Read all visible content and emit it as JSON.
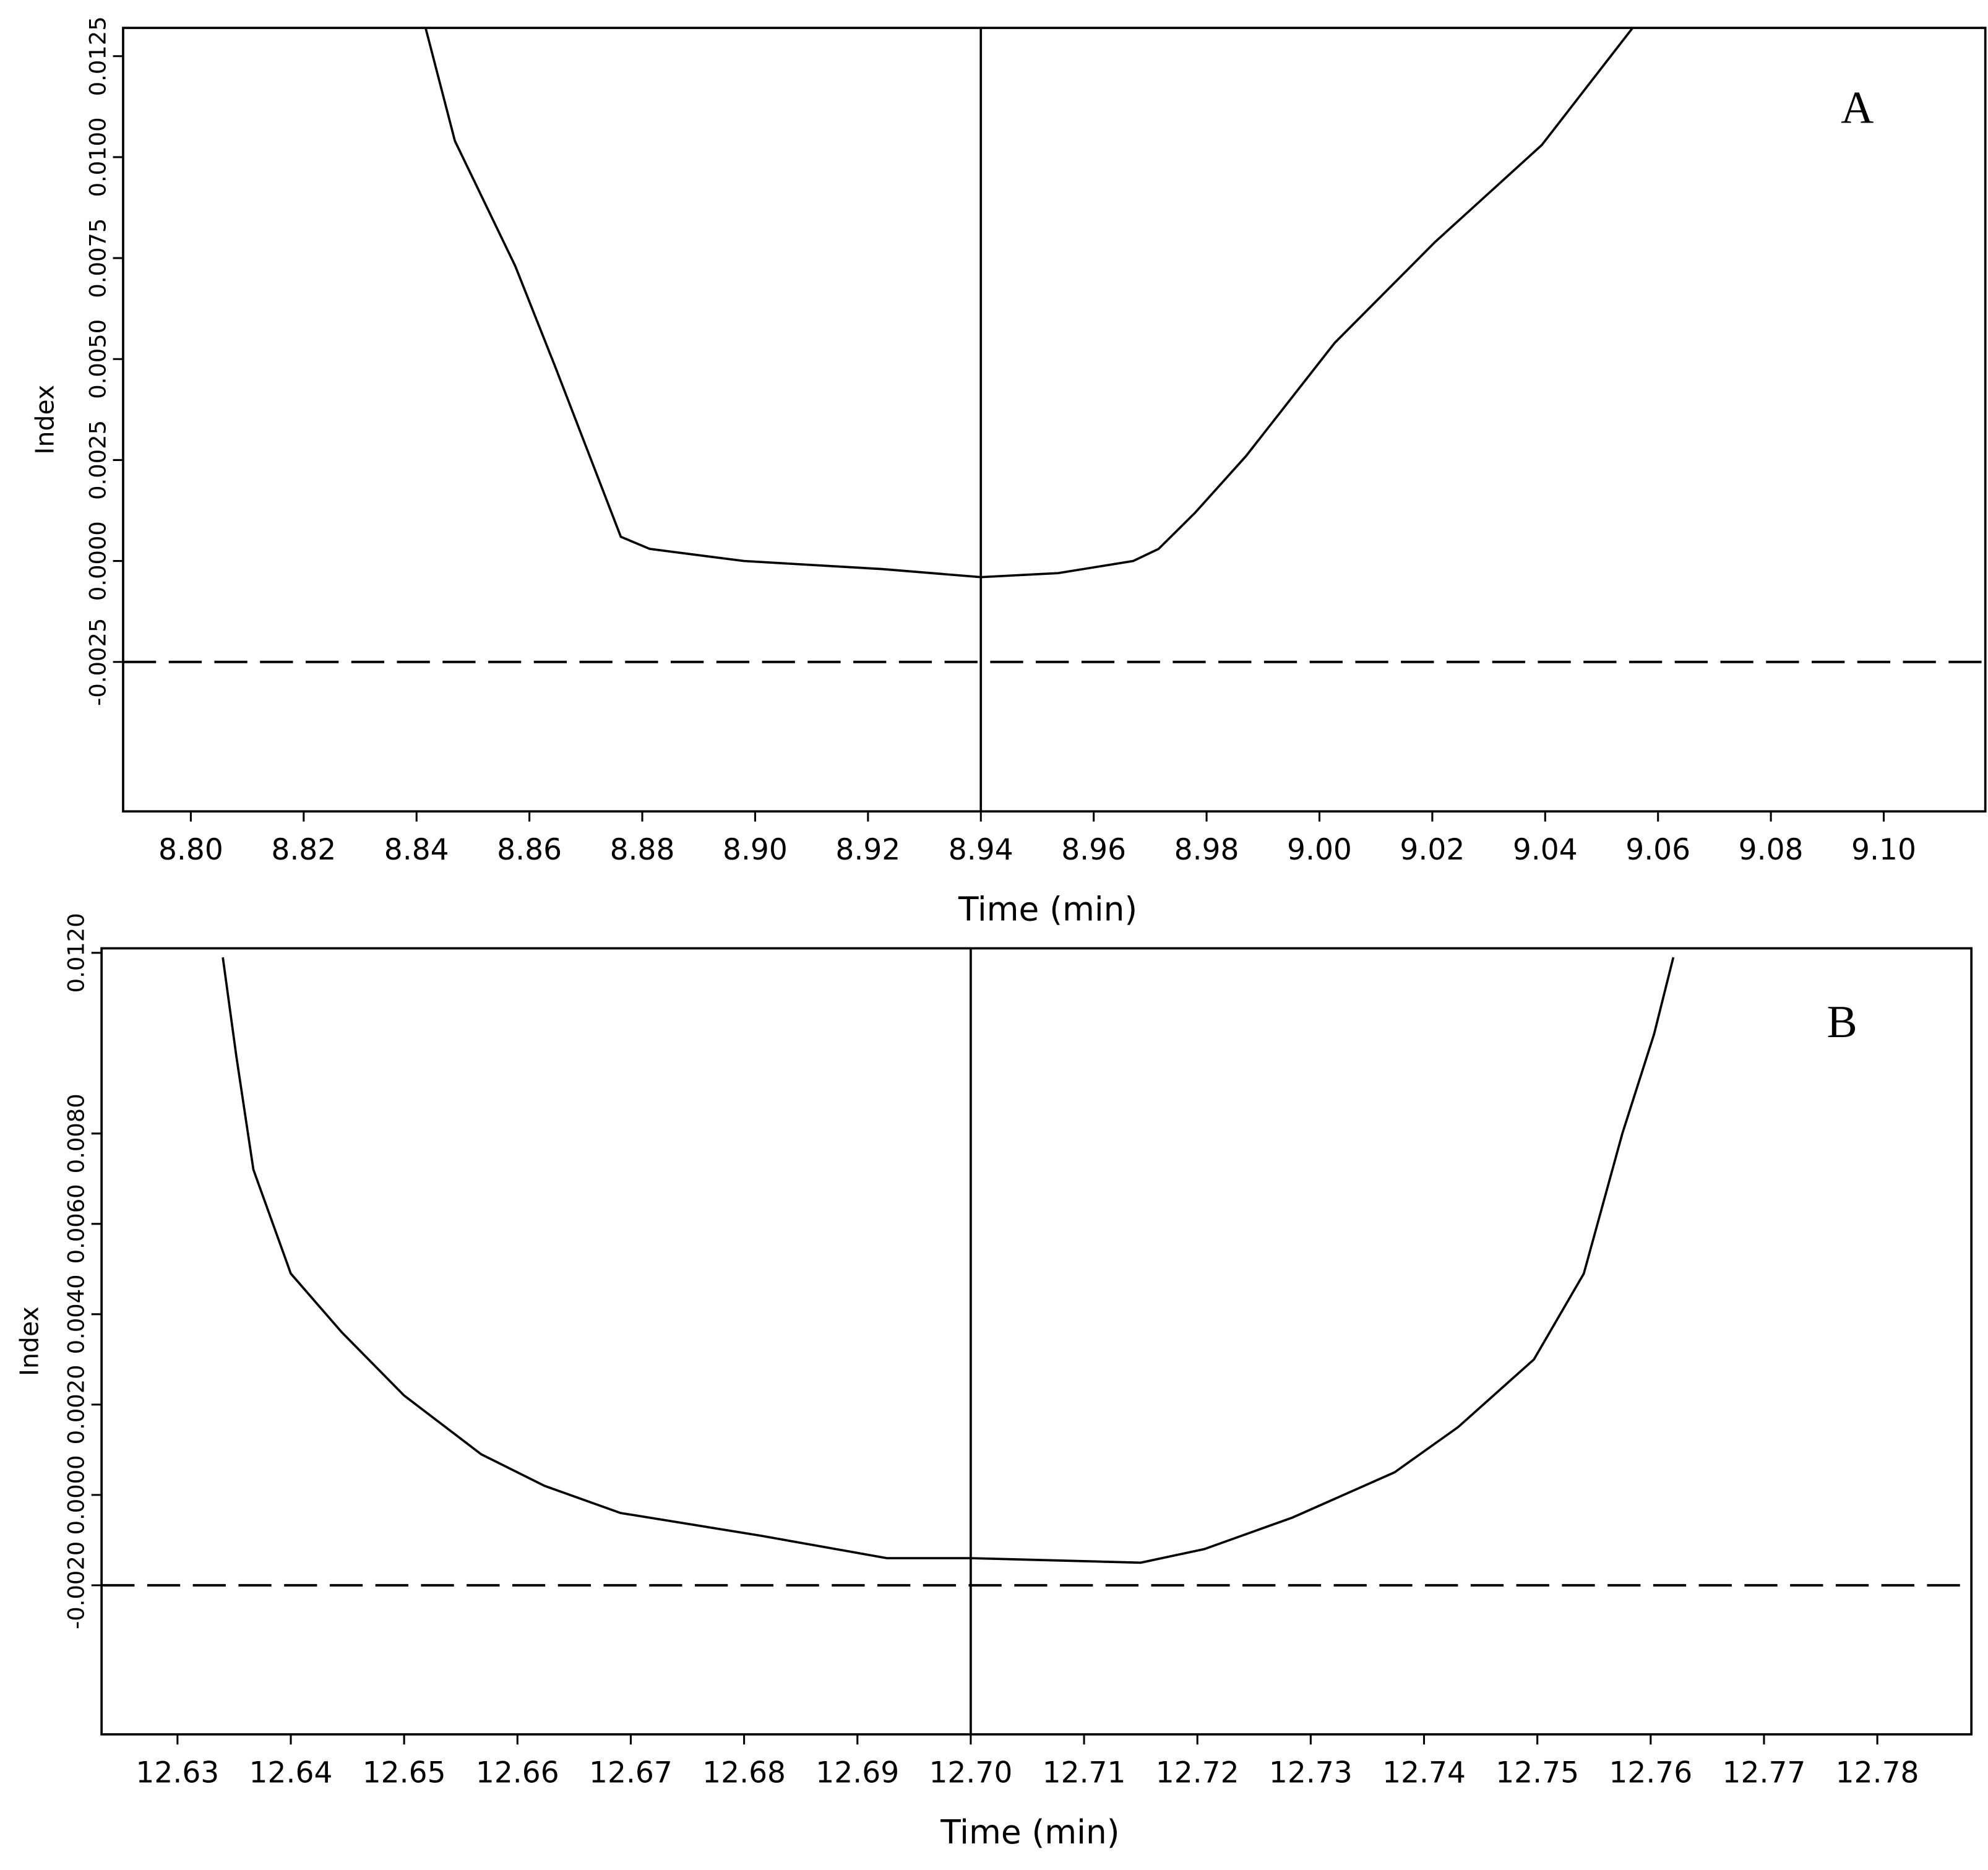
{
  "chart_data": [
    {
      "type": "line",
      "annotation": "A",
      "x_label": "Time (min)",
      "y_label": "Index",
      "xlim": [
        8.788,
        9.118
      ],
      "ylim": [
        -0.0062,
        0.0132
      ],
      "xticks": [
        {
          "value": 8.8,
          "label": "8.80"
        },
        8.82,
        8.84,
        8.86,
        8.88,
        {
          "value": 8.9,
          "label": "8.90"
        },
        8.92,
        8.94,
        8.96,
        8.98,
        {
          "value": 9.0,
          "label": "9.00"
        },
        9.02,
        9.04,
        9.06,
        9.08,
        {
          "value": 9.1,
          "label": "9.10"
        }
      ],
      "yticks": [
        0.0125,
        {
          "value": 0.01,
          "label": "0.0100"
        },
        0.0075,
        {
          "value": 0.005,
          "label": "0.0050"
        },
        0.0025,
        {
          "value": 0,
          "label": "0.0000"
        },
        -0.0025
      ],
      "x": [
        8.8416,
        8.8468,
        8.8575,
        8.8646,
        8.8762,
        8.8813,
        8.898,
        8.9225,
        8.94,
        8.9537,
        8.967,
        8.9715,
        8.978,
        8.987,
        9.0027,
        9.0205,
        9.0394,
        9.0555
      ],
      "values": [
        0.0132,
        0.0104,
        0.0073,
        0.0048,
        0.0006,
        0.0003,
        0.0,
        -0.0002,
        -0.0004,
        -0.0003,
        0.0,
        0.0003,
        0.0012,
        0.0026,
        0.0054,
        0.0079,
        0.0103,
        0.0132
      ],
      "color": "#000000",
      "vline": 8.94,
      "hline": -0.0025
    },
    {
      "type": "line",
      "annotation": "B",
      "x_label": "Time (min)",
      "y_label": "Index",
      "xlim": [
        12.6233,
        12.7883
      ],
      "ylim": [
        -0.0053,
        0.0121
      ],
      "xticks": [
        12.63,
        12.64,
        12.65,
        12.66,
        12.67,
        12.68,
        12.69,
        {
          "value": 12.7,
          "label": "12.70"
        },
        12.71,
        12.72,
        12.73,
        12.74,
        12.75,
        12.76,
        12.77,
        12.78
      ],
      "yticks": [
        {
          "value": 0.012,
          "label": "0.0120"
        },
        {
          "value": 0.008,
          "label": "0.0080"
        },
        {
          "value": 0.006,
          "label": "0.0060"
        },
        {
          "value": 0.004,
          "label": "0.0040"
        },
        {
          "value": 0.002,
          "label": "0.0020"
        },
        {
          "value": 0,
          "label": "0.0000"
        },
        {
          "value": -0.002,
          "label": "-0.0020"
        }
      ],
      "x": [
        12.634,
        12.6352,
        12.6367,
        12.64,
        12.6445,
        12.65,
        12.6568,
        12.6624,
        12.6691,
        12.6814,
        12.6926,
        12.7,
        12.715,
        12.7206,
        12.7284,
        12.7374,
        12.743,
        12.7497,
        12.7541,
        12.7575,
        12.7603,
        12.762
      ],
      "values": [
        0.0119,
        0.0097,
        0.0072,
        0.0049,
        0.0036,
        0.0022,
        0.0009,
        0.0002,
        -0.0004,
        -0.0009,
        -0.0014,
        -0.0014,
        -0.0015,
        -0.0012,
        -0.0005,
        0.0005,
        0.0015,
        0.003,
        0.0049,
        0.008,
        0.0102,
        0.0119
      ],
      "color": "#000000",
      "vline": 12.7,
      "hline": -0.002
    }
  ]
}
